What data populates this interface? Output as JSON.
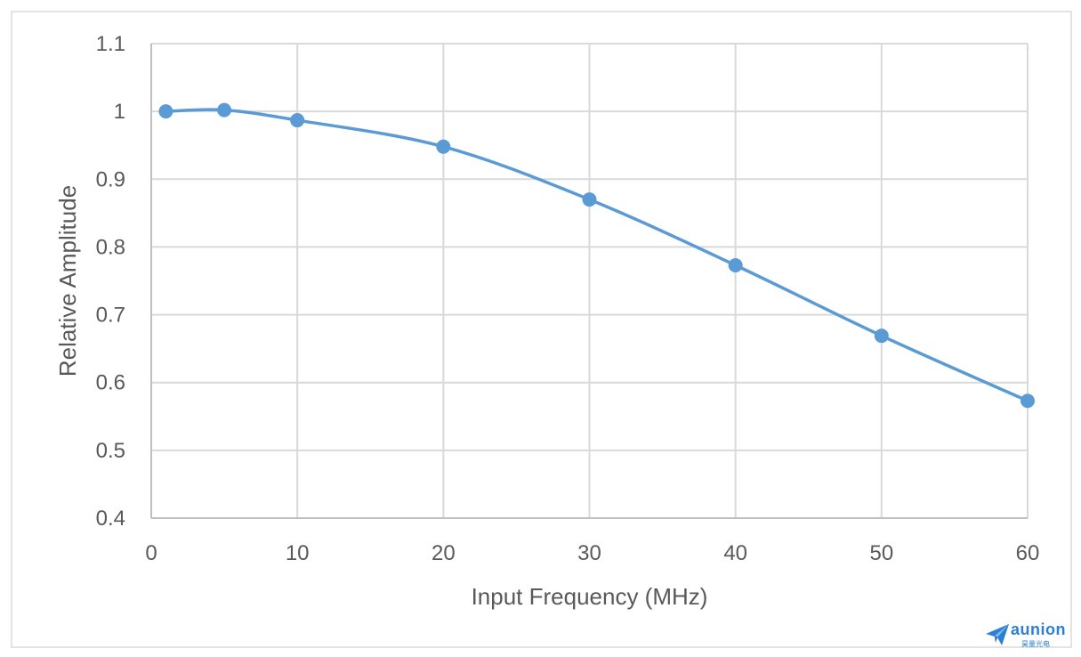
{
  "chart_data": {
    "type": "line",
    "title": "",
    "xlabel": "Input Frequency (MHz)",
    "ylabel": "Relative Amplitude",
    "xlim": [
      0,
      60
    ],
    "ylim": [
      0.4,
      1.1
    ],
    "xticks": [
      0,
      10,
      20,
      30,
      40,
      50,
      60
    ],
    "yticks": [
      0.4,
      0.5,
      0.6,
      0.7,
      0.8,
      0.9,
      1.0,
      1.1
    ],
    "ytick_labels": [
      "0.4",
      "0.5",
      "0.6",
      "0.7",
      "0.8",
      "0.9",
      "1",
      "1.1"
    ],
    "grid": true,
    "smooth": true,
    "series": [
      {
        "color": "#5b9bd5",
        "x": [
          1,
          5,
          10,
          20,
          30,
          40,
          50,
          60
        ],
        "y": [
          1.0,
          1.002,
          0.987,
          0.948,
          0.87,
          0.773,
          0.669,
          0.573
        ]
      }
    ]
  },
  "logo": {
    "name": "aunion",
    "subtitle": "昊量光电"
  }
}
